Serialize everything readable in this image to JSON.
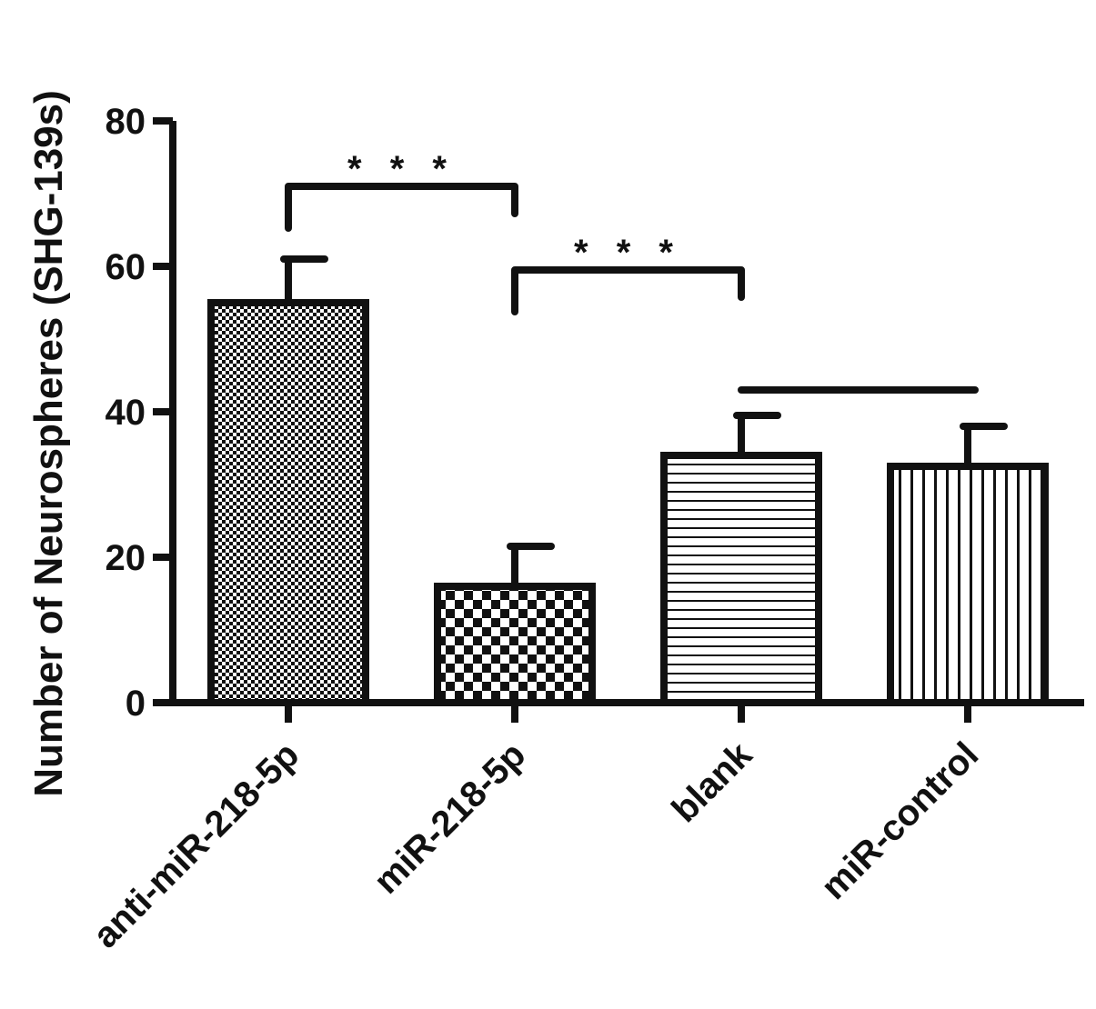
{
  "chart_data": {
    "type": "bar",
    "title": "",
    "xlabel": "",
    "ylabel": "Number of Neurospheres (SHG-139s)",
    "ylim": [
      0,
      80
    ],
    "yticks": [
      0,
      20,
      40,
      60,
      80
    ],
    "grid": false,
    "categories": [
      "anti-miR-218-5p",
      "miR-218-5p",
      "blank",
      "miR-control"
    ],
    "values": [
      55,
      16,
      34,
      32.5
    ],
    "errors": [
      6,
      5.5,
      5.5,
      5.5
    ],
    "patterns": [
      "fine-checker",
      "coarse-checker",
      "horizontal-lines",
      "vertical-lines"
    ],
    "annotations": [
      {
        "from": "anti-miR-218-5p",
        "to": "miR-218-5p",
        "label": "* * *",
        "y": 71
      },
      {
        "from": "miR-218-5p",
        "to": "blank",
        "label": "* * *",
        "y": 59.5
      },
      {
        "from": "blank",
        "to": "miR-control",
        "label": "",
        "y": 43
      }
    ]
  },
  "colors": {
    "ink": "#111111",
    "background": "#ffffff"
  }
}
